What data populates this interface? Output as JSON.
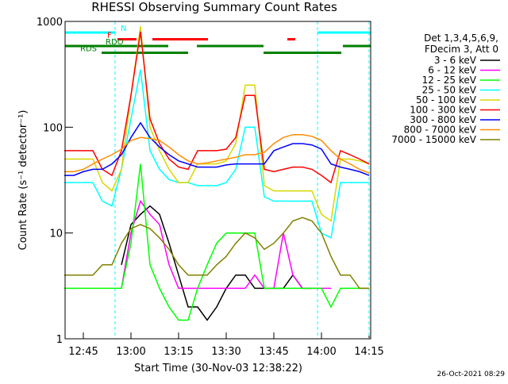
{
  "chart_data": {
    "type": "line",
    "title": "RHESSI Observing Summary Count Rates",
    "xlabel": "Start Time (30-Nov-03 12:38:22)",
    "ylabel": "Count Rate (s⁻¹ detector⁻¹)",
    "footer": "26-Oct-2021 08:29",
    "legend_header": [
      "Det 1,3,4,5,6,9,",
      "FDecim 3, Att 0"
    ],
    "log_y": true,
    "xlim": [
      759.25,
      855.5
    ],
    "xticks": [
      {
        "value": 765,
        "label": "12:45"
      },
      {
        "value": 780,
        "label": "13:00"
      },
      {
        "value": 795,
        "label": "13:15"
      },
      {
        "value": 810,
        "label": "13:30"
      },
      {
        "value": 825,
        "label": "13:45"
      },
      {
        "value": 840,
        "label": "14:00"
      },
      {
        "value": 855,
        "label": "14:15"
      }
    ],
    "ylim": [
      1,
      1000
    ],
    "yticks": [
      1,
      10,
      100,
      1000
    ],
    "x": [
      759,
      762,
      765,
      768,
      771,
      774,
      777,
      780,
      783,
      786,
      789,
      792,
      795,
      798,
      801,
      804,
      807,
      810,
      813,
      816,
      819,
      822,
      825,
      828,
      831,
      834,
      837,
      840,
      843,
      846,
      849,
      852,
      855
    ],
    "series": [
      {
        "name": "3 - 6 keV",
        "color": "#000000",
        "values": [
          null,
          null,
          null,
          null,
          null,
          null,
          5,
          12,
          15,
          18,
          15,
          8,
          4,
          2,
          2,
          1.5,
          2,
          3,
          4,
          4,
          3,
          3,
          3,
          3,
          4,
          3,
          3,
          null,
          null,
          null,
          null,
          null,
          null
        ]
      },
      {
        "name": "6 - 12 keV",
        "color": "#ff00ff",
        "values": [
          null,
          null,
          null,
          null,
          null,
          null,
          3,
          10,
          20,
          15,
          12,
          5,
          3,
          3,
          3,
          3,
          3,
          3,
          3,
          3,
          4,
          3,
          3,
          10,
          4,
          3,
          3,
          3,
          3,
          null,
          null,
          null,
          null
        ]
      },
      {
        "name": "12 - 25 keV",
        "color": "#00ff00",
        "values": [
          3,
          3,
          3,
          3,
          3,
          3,
          3,
          8,
          45,
          5,
          3,
          2,
          1.5,
          1.5,
          3,
          5,
          8,
          10,
          10,
          10,
          10,
          3,
          3,
          3,
          3,
          3,
          3,
          3,
          2,
          3,
          3,
          3,
          3
        ]
      },
      {
        "name": "25 - 50 keV",
        "color": "#00ffff",
        "values": [
          30,
          30,
          30,
          30,
          20,
          18,
          40,
          120,
          350,
          60,
          40,
          32,
          30,
          30,
          28,
          28,
          28,
          30,
          40,
          100,
          100,
          22,
          20,
          20,
          20,
          20,
          20,
          10,
          9,
          30,
          30,
          30,
          30
        ]
      },
      {
        "name": "50 - 100 keV",
        "color": "#d8d800",
        "values": [
          50,
          50,
          50,
          50,
          30,
          25,
          40,
          200,
          900,
          100,
          60,
          40,
          30,
          30,
          45,
          45,
          45,
          48,
          70,
          250,
          250,
          28,
          25,
          25,
          25,
          25,
          25,
          15,
          13,
          50,
          50,
          48,
          45
        ]
      },
      {
        "name": "100 - 300 keV",
        "color": "#ff0000",
        "values": [
          60,
          60,
          60,
          60,
          40,
          35,
          60,
          200,
          800,
          120,
          70,
          50,
          42,
          40,
          60,
          60,
          60,
          62,
          80,
          200,
          200,
          40,
          38,
          40,
          42,
          42,
          40,
          35,
          30,
          60,
          55,
          50,
          45
        ]
      },
      {
        "name": "300 - 800 keV",
        "color": "#0000ff",
        "values": [
          35,
          35,
          38,
          40,
          40,
          45,
          55,
          80,
          110,
          80,
          65,
          55,
          48,
          45,
          42,
          42,
          42,
          44,
          45,
          45,
          45,
          45,
          60,
          65,
          70,
          70,
          68,
          62,
          45,
          42,
          40,
          38,
          35
        ]
      },
      {
        "name": "800 - 7000 keV",
        "color": "#ff8c00",
        "values": [
          38,
          38,
          40,
          45,
          50,
          55,
          62,
          75,
          80,
          78,
          75,
          65,
          55,
          48,
          45,
          46,
          48,
          50,
          52,
          55,
          55,
          58,
          70,
          80,
          85,
          85,
          82,
          75,
          60,
          50,
          45,
          40,
          37
        ]
      },
      {
        "name": "7000 - 15000 keV",
        "color": "#808000",
        "values": [
          4,
          4,
          4,
          4,
          5,
          5,
          8,
          11,
          12,
          11,
          9,
          7,
          5,
          4,
          4,
          4,
          5,
          6,
          8,
          10,
          9,
          7,
          8,
          10,
          13,
          14,
          13,
          10,
          6,
          4,
          4,
          3,
          3
        ]
      }
    ],
    "flags": [
      {
        "name": "N",
        "color": "#00ffff",
        "intervals": [
          [
            759.25,
            775
          ],
          [
            838.75,
            855.5
          ]
        ]
      },
      {
        "name": "F",
        "color": "#ff0000",
        "intervals": [
          [
            775.75,
            781.75
          ],
          [
            786.75,
            804.25
          ],
          [
            829.25,
            831.75
          ]
        ]
      },
      {
        "name": "RDO",
        "color": "#008000",
        "intervals": [
          [
            759.25,
            791.75
          ],
          [
            800.75,
            821.75
          ],
          [
            846.75,
            855.5
          ]
        ]
      },
      {
        "name": "RDS",
        "color": "#008000",
        "intervals": [
          [
            770.75,
            798
          ],
          [
            821.75,
            846.25
          ]
        ]
      }
    ],
    "vlines": [
      775,
      838.75,
      855
    ]
  }
}
